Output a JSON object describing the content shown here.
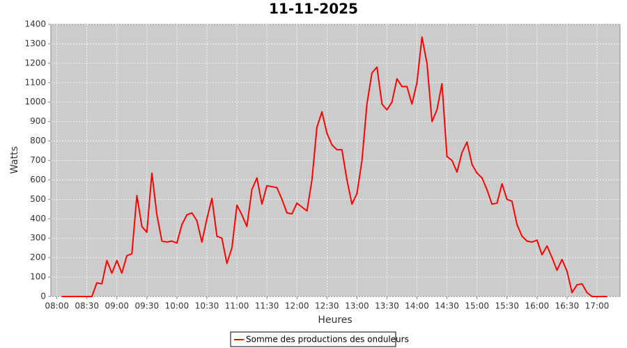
{
  "chart_data": {
    "type": "line",
    "title": "11-11-2025",
    "x_label": "Heures",
    "y_label": "Watts",
    "x": [
      "08:05",
      "08:10",
      "08:15",
      "08:20",
      "08:25",
      "08:30",
      "08:35",
      "08:40",
      "08:45",
      "08:50",
      "08:55",
      "09:00",
      "09:05",
      "09:10",
      "09:15",
      "09:20",
      "09:25",
      "09:30",
      "09:35",
      "09:40",
      "09:45",
      "09:50",
      "09:55",
      "10:00",
      "10:05",
      "10:10",
      "10:15",
      "10:20",
      "10:25",
      "10:30",
      "10:35",
      "10:40",
      "10:45",
      "10:50",
      "10:55",
      "11:00",
      "11:05",
      "11:10",
      "11:15",
      "11:20",
      "11:25",
      "11:30",
      "11:35",
      "11:40",
      "11:45",
      "11:50",
      "11:55",
      "12:00",
      "12:05",
      "12:10",
      "12:15",
      "12:20",
      "12:25",
      "12:30",
      "12:35",
      "12:40",
      "12:45",
      "12:50",
      "12:55",
      "13:00",
      "13:05",
      "13:10",
      "13:15",
      "13:20",
      "13:25",
      "13:30",
      "13:35",
      "13:40",
      "13:45",
      "13:50",
      "13:55",
      "14:00",
      "14:05",
      "14:10",
      "14:15",
      "14:20",
      "14:25",
      "14:30",
      "14:35",
      "14:40",
      "14:45",
      "14:50",
      "14:55",
      "15:00",
      "15:05",
      "15:10",
      "15:15",
      "15:20",
      "15:25",
      "15:30",
      "15:35",
      "15:40",
      "15:45",
      "15:50",
      "15:55",
      "16:00",
      "16:05",
      "16:10",
      "16:15",
      "16:20",
      "16:25",
      "16:30",
      "16:35",
      "16:40",
      "16:45",
      "16:50",
      "16:55",
      "17:00",
      "17:05",
      "17:10"
    ],
    "series": [
      {
        "name": "Somme des productions des onduleurs",
        "color": "#ff0000",
        "values": [
          0,
          0,
          0,
          0,
          0,
          0,
          0,
          70,
          65,
          185,
          120,
          185,
          120,
          210,
          220,
          520,
          360,
          330,
          635,
          420,
          285,
          280,
          285,
          275,
          370,
          420,
          430,
          390,
          280,
          400,
          505,
          310,
          300,
          170,
          250,
          470,
          420,
          360,
          550,
          610,
          475,
          570,
          565,
          560,
          500,
          430,
          425,
          480,
          460,
          440,
          600,
          870,
          950,
          840,
          780,
          755,
          755,
          600,
          475,
          530,
          700,
          990,
          1150,
          1180,
          990,
          960,
          1000,
          1120,
          1080,
          1080,
          990,
          1100,
          1335,
          1200,
          900,
          960,
          1095,
          720,
          700,
          640,
          740,
          795,
          680,
          635,
          610,
          550,
          475,
          480,
          580,
          500,
          490,
          370,
          310,
          285,
          280,
          290,
          215,
          260,
          200,
          135,
          190,
          130,
          20,
          60,
          65,
          20,
          0,
          0,
          0,
          0
        ]
      }
    ],
    "xlim": [
      "07:54",
      "17:23"
    ],
    "xticks": [
      "08:00",
      "08:30",
      "09:00",
      "09:30",
      "10:00",
      "10:30",
      "11:00",
      "11:30",
      "12:00",
      "12:30",
      "13:00",
      "13:30",
      "14:00",
      "14:30",
      "15:00",
      "15:30",
      "16:00",
      "16:30",
      "17:00"
    ],
    "ylim": [
      0,
      1400
    ],
    "yticks": [
      0,
      100,
      200,
      300,
      400,
      500,
      600,
      700,
      800,
      900,
      1000,
      1100,
      1200,
      1300,
      1400
    ],
    "grid": true
  }
}
